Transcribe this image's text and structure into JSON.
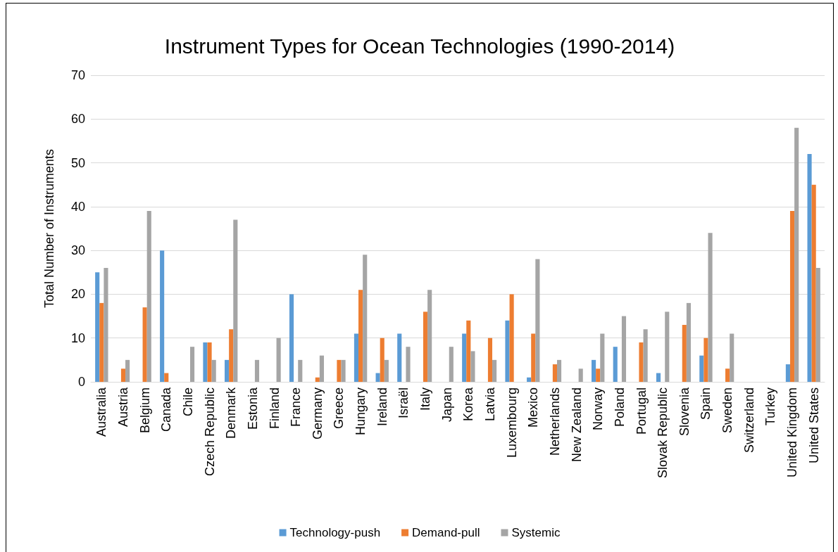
{
  "chart_data": {
    "type": "bar",
    "title": "Instrument Types for Ocean Technologies (1990-2014)",
    "ylabel": "Total Number of Instruments",
    "categories": [
      "Australia",
      "Austria",
      "Belgium",
      "Canada",
      "Chile",
      "Czech Republic",
      "Denmark",
      "Estonia",
      "Finland",
      "France",
      "Germany",
      "Greece",
      "Hungary",
      "Ireland",
      "Israël",
      "Italy",
      "Japan",
      "Korea",
      "Latvia",
      "Luxembourg",
      "Mexico",
      "Netherlands",
      "New Zealand",
      "Norway",
      "Poland",
      "Portugal",
      "Slovak Republic",
      "Slovenia",
      "Spain",
      "Sweden",
      "Switzerland",
      "Turkey",
      "United Kingdom",
      "United States"
    ],
    "series": [
      {
        "name": "Technology-push",
        "color": "#5b9bd5",
        "values": [
          25,
          0,
          0,
          30,
          0,
          9,
          5,
          0,
          0,
          20,
          0,
          0,
          11,
          2,
          11,
          0,
          0,
          11,
          0,
          14,
          1,
          0,
          0,
          5,
          8,
          0,
          2,
          0,
          6,
          0,
          0,
          0,
          4,
          52
        ]
      },
      {
        "name": "Demand-pull",
        "color": "#ed7d31",
        "values": [
          18,
          3,
          17,
          2,
          0,
          9,
          12,
          0,
          0,
          0,
          1,
          5,
          21,
          10,
          0,
          16,
          0,
          14,
          10,
          20,
          11,
          4,
          0,
          3,
          0,
          9,
          0,
          13,
          10,
          3,
          0,
          0,
          39,
          45
        ]
      },
      {
        "name": "Systemic",
        "color": "#a5a5a5",
        "values": [
          26,
          5,
          39,
          0,
          8,
          5,
          37,
          5,
          10,
          5,
          6,
          5,
          29,
          5,
          8,
          21,
          8,
          7,
          5,
          0,
          28,
          5,
          3,
          11,
          15,
          12,
          16,
          18,
          34,
          11,
          0,
          0,
          58,
          26
        ]
      }
    ],
    "ylim": [
      0,
      70
    ],
    "yticks": [
      0,
      10,
      20,
      30,
      40,
      50,
      60,
      70
    ],
    "grid": "y",
    "legend": "bottom"
  }
}
